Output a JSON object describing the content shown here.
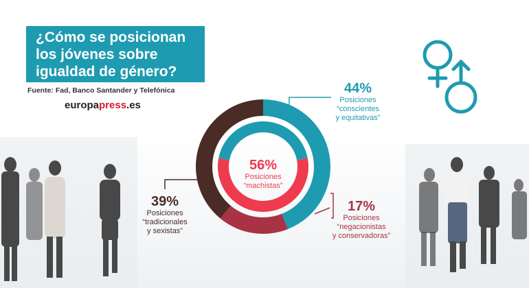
{
  "title": "¿Cómo se posicionan los jóvenes sobre igualdad de género?",
  "source": "Fuente: Fad, Banco Santander y Telefónica",
  "brand": {
    "part1": "europa",
    "part2": "press",
    "part3": ".es"
  },
  "colors": {
    "teal": "#1e9bb0",
    "red": "#ef3b4e",
    "dark_red": "#a83345",
    "dark_brown": "#4a2b25"
  },
  "icons": {
    "gender": "venus-mars-icon"
  },
  "chart_data": {
    "type": "pie",
    "rings": [
      {
        "ring": "outer",
        "slices": [
          {
            "label": "Posiciones “conscientes y equitativas”",
            "value": 44,
            "color": "#1e9bb0"
          },
          {
            "label": "Posiciones “negacionistas y conservadoras”",
            "value": 17,
            "color": "#a83345"
          },
          {
            "label": "Posiciones “tradicionales y sexistas”",
            "value": 39,
            "color": "#4a2b25"
          }
        ]
      },
      {
        "ring": "inner",
        "slices": [
          {
            "label": "Posiciones “machistas”",
            "value": 56,
            "color": "#ef3b4e"
          },
          {
            "label": "",
            "value": 44,
            "color": "#1e9bb0"
          }
        ]
      }
    ],
    "labels": {
      "conscientes": {
        "pct": "44%",
        "line1": "Posiciones",
        "line2": "“conscientes",
        "line3": "y equitativas”"
      },
      "machistas": {
        "pct": "56%",
        "line1": "Posiciones",
        "line2": "“machistas”"
      },
      "negacionistas": {
        "pct": "17%",
        "line1": "Posiciones",
        "line2": "“negacionistas",
        "line3": "y conservadoras”"
      },
      "tradicionales": {
        "pct": "39%",
        "line1": "Posiciones",
        "line2": "“tradicionales",
        "line3": "y sexistas”"
      }
    }
  }
}
